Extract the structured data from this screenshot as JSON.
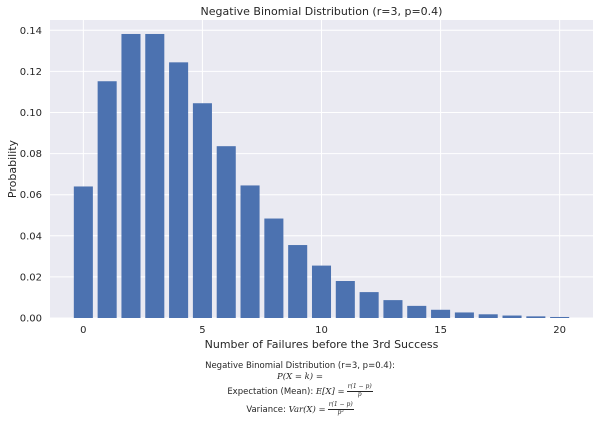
{
  "chart_data": {
    "type": "bar",
    "title": "Negative Binomial Distribution (r=3, p=0.4)",
    "xlabel": "Number of Failures before the 3rd Success",
    "ylabel": "Probability",
    "x": [
      0,
      1,
      2,
      3,
      4,
      5,
      6,
      7,
      8,
      9,
      10,
      11,
      12,
      13,
      14,
      15,
      16,
      17,
      18,
      19,
      20
    ],
    "values": [
      0.064,
      0.1152,
      0.1382,
      0.1382,
      0.1244,
      0.1045,
      0.0836,
      0.0645,
      0.0484,
      0.0355,
      0.0255,
      0.018,
      0.0126,
      0.0087,
      0.0059,
      0.004,
      0.0027,
      0.0018,
      0.0012,
      0.0008,
      0.0005
    ],
    "xlim": [
      -1.4,
      21.4
    ],
    "ylim": [
      0,
      0.145
    ],
    "xticks": [
      "0",
      "5",
      "10",
      "15",
      "20"
    ],
    "yticks": [
      "0.00",
      "0.02",
      "0.04",
      "0.06",
      "0.08",
      "0.10",
      "0.12",
      "0.14"
    ],
    "grid": true,
    "bar_color": "#4c72b0",
    "plot_background": "#eaeaf2",
    "grid_color": "#ffffff"
  },
  "annotation": {
    "line1": "Negative Binomial Distribution (r=3, p=0.4):",
    "pmf": "P(X = k) =",
    "mean_label": "Expectation (Mean): ",
    "mean_expr": "E[X] =",
    "mean_num": "r(1 − p)",
    "mean_den": "p",
    "var_label": "Variance: ",
    "var_expr": "Var(X) =",
    "var_num": "r(1 − p)",
    "var_den": "p²"
  }
}
